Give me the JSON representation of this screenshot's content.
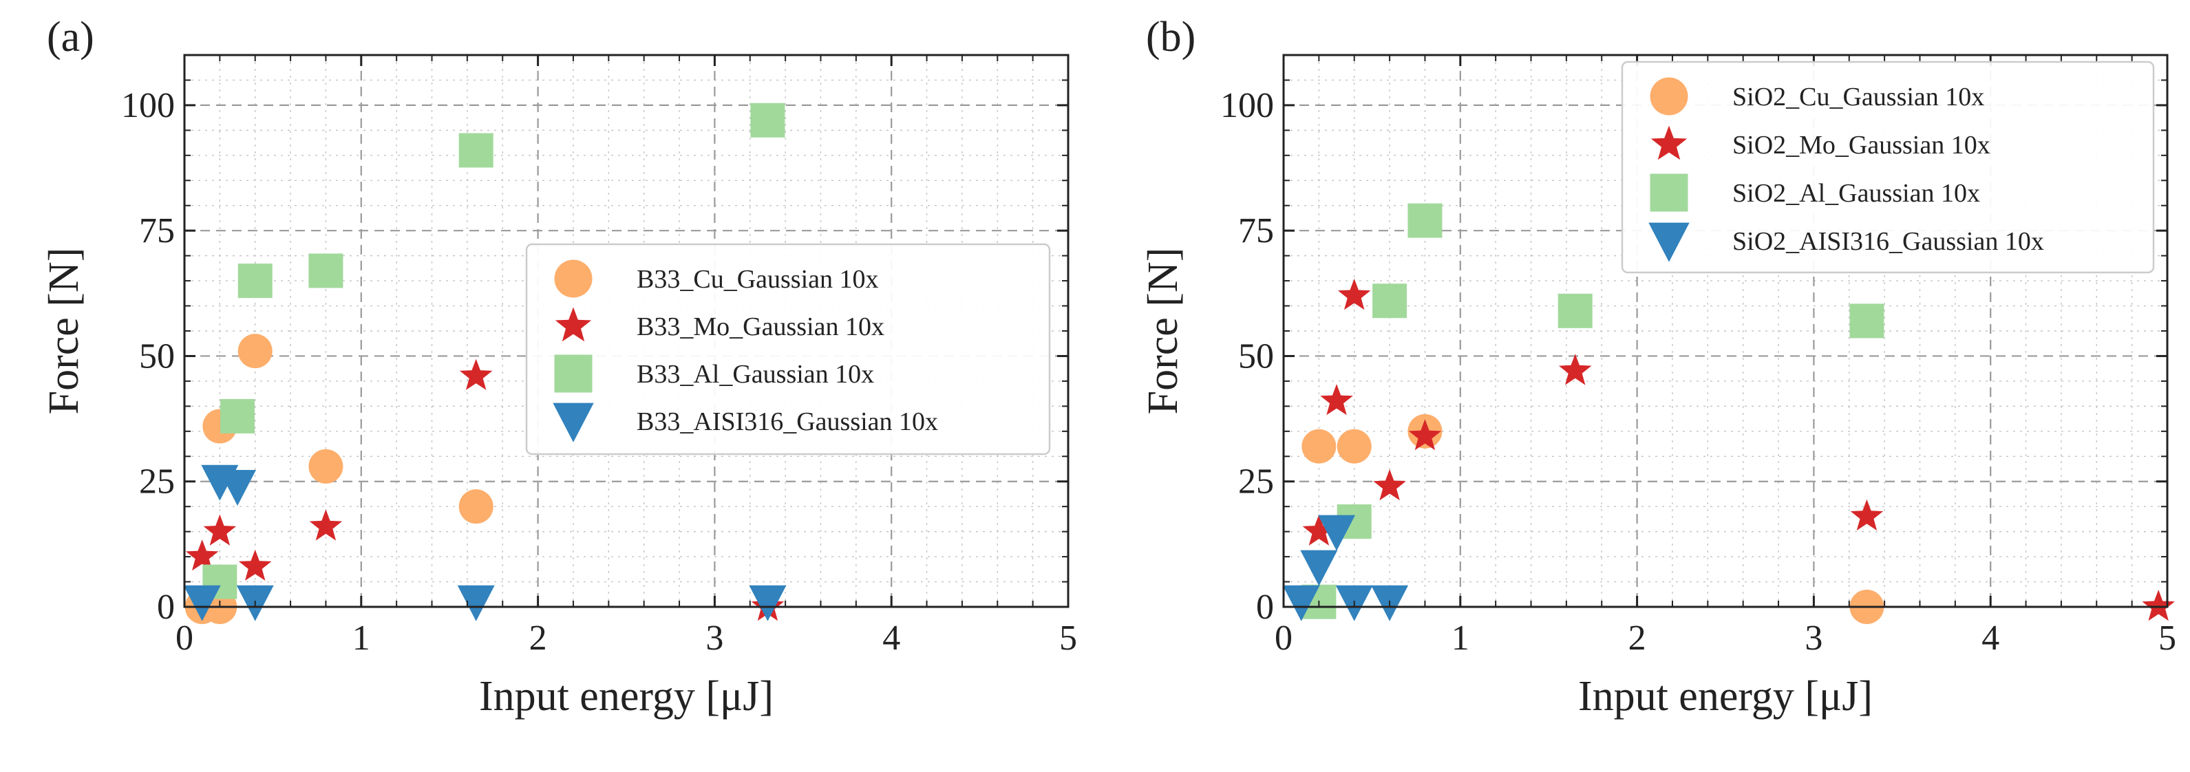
{
  "chart_data": [
    {
      "type": "scatter",
      "panel_label": "(a)",
      "xlabel": "Input energy [μJ]",
      "ylabel": "Force [N]",
      "xlim": [
        0,
        5
      ],
      "ylim": [
        0,
        110
      ],
      "xticks": [
        0,
        1,
        2,
        3,
        4,
        5
      ],
      "yticks": [
        0,
        25,
        50,
        75,
        100
      ],
      "grid": true,
      "legend_position": "center-right",
      "series": [
        {
          "name": "B33_Cu_Gaussian 10x",
          "marker": "circle",
          "color": "#fdae6b",
          "points": [
            [
              0.2,
              36
            ],
            [
              0.4,
              51
            ],
            [
              0.8,
              28
            ],
            [
              1.65,
              20
            ],
            [
              0.1,
              0
            ],
            [
              0.2,
              0
            ]
          ]
        },
        {
          "name": "B33_Mo_Gaussian 10x",
          "marker": "star",
          "color": "#d62728",
          "points": [
            [
              0.1,
              10
            ],
            [
              0.2,
              15
            ],
            [
              0.4,
              8
            ],
            [
              0.8,
              16
            ],
            [
              1.65,
              46
            ],
            [
              3.3,
              0
            ]
          ]
        },
        {
          "name": "B33_Al_Gaussian 10x",
          "marker": "square",
          "color": "#a1d99b",
          "points": [
            [
              0.2,
              5
            ],
            [
              0.3,
              38
            ],
            [
              0.4,
              65
            ],
            [
              0.8,
              67
            ],
            [
              1.65,
              91
            ],
            [
              3.3,
              97
            ]
          ]
        },
        {
          "name": "B33_AISI316_Gaussian 10x",
          "marker": "triangle-down",
          "color": "#3182bd",
          "points": [
            [
              0.1,
              1
            ],
            [
              0.2,
              25
            ],
            [
              0.3,
              24
            ],
            [
              0.4,
              1
            ],
            [
              1.65,
              1
            ],
            [
              3.3,
              1
            ]
          ]
        }
      ]
    },
    {
      "type": "scatter",
      "panel_label": "(b)",
      "xlabel": "Input energy [μJ]",
      "ylabel": "Force [N]",
      "xlim": [
        0,
        5
      ],
      "ylim": [
        0,
        110
      ],
      "xticks": [
        0,
        1,
        2,
        3,
        4,
        5
      ],
      "yticks": [
        0,
        25,
        50,
        75,
        100
      ],
      "grid": true,
      "legend_position": "top-right",
      "series": [
        {
          "name": "SiO2_Cu_Gaussian 10x",
          "marker": "circle",
          "color": "#fdae6b",
          "points": [
            [
              0.2,
              32
            ],
            [
              0.4,
              32
            ],
            [
              0.8,
              35
            ],
            [
              3.3,
              0
            ]
          ]
        },
        {
          "name": "SiO2_Mo_Gaussian 10x",
          "marker": "star",
          "color": "#d62728",
          "points": [
            [
              0.2,
              15
            ],
            [
              0.3,
              41
            ],
            [
              0.4,
              62
            ],
            [
              0.6,
              24
            ],
            [
              0.8,
              34
            ],
            [
              1.65,
              47
            ],
            [
              3.3,
              18
            ],
            [
              4.95,
              0
            ]
          ]
        },
        {
          "name": "SiO2_Al_Gaussian 10x",
          "marker": "square",
          "color": "#a1d99b",
          "points": [
            [
              0.2,
              1
            ],
            [
              0.4,
              17
            ],
            [
              0.6,
              61
            ],
            [
              0.8,
              77
            ],
            [
              1.65,
              59
            ],
            [
              3.3,
              57
            ]
          ]
        },
        {
          "name": "SiO2_AISI316_Gaussian 10x",
          "marker": "triangle-down",
          "color": "#3182bd",
          "points": [
            [
              0.1,
              1
            ],
            [
              0.2,
              8
            ],
            [
              0.3,
              15
            ],
            [
              0.4,
              1
            ],
            [
              0.6,
              1
            ]
          ]
        }
      ]
    }
  ]
}
